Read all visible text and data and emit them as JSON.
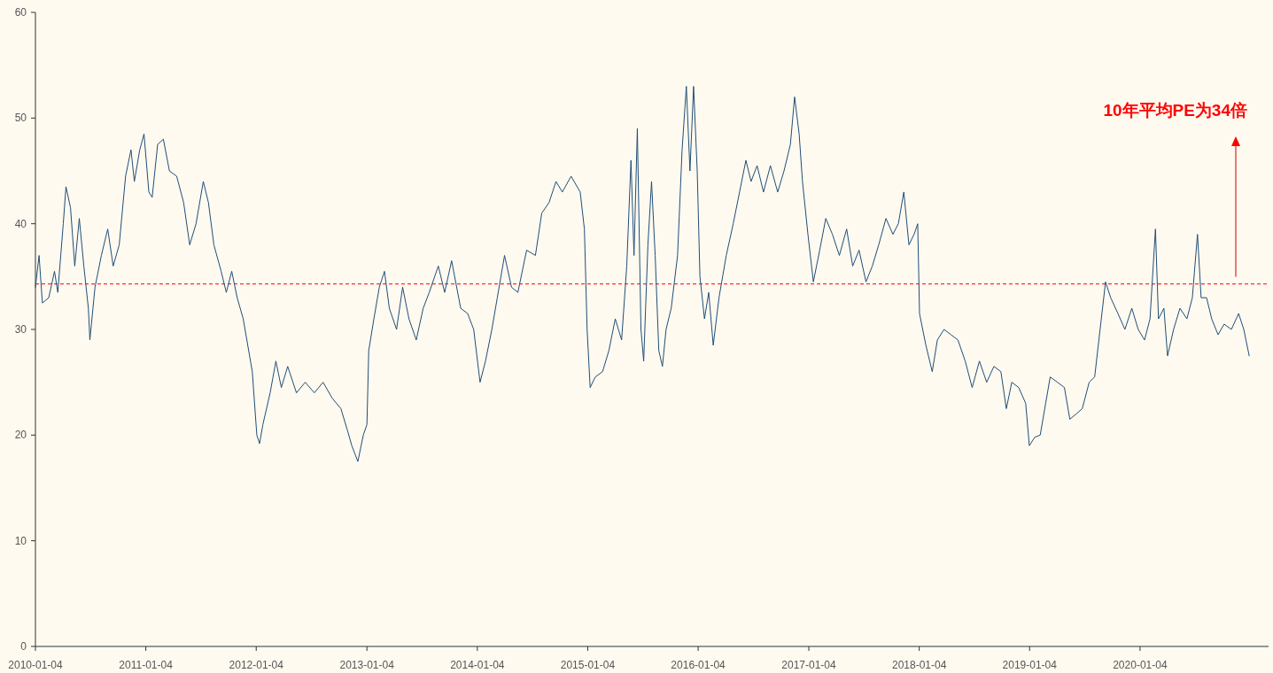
{
  "chart_data": {
    "type": "line",
    "x": [
      "2010-01-04",
      "2010-01-16",
      "2010-01-27",
      "2010-02-17",
      "2010-03-08",
      "2010-03-19",
      "2010-04-06",
      "2010-04-15",
      "2010-04-30",
      "2010-05-14",
      "2010-05-29",
      "2010-06-13",
      "2010-06-28",
      "2010-07-03",
      "2010-07-20",
      "2010-08-10",
      "2010-08-31",
      "2010-09-18",
      "2010-10-08",
      "2010-10-29",
      "2010-11-16",
      "2010-11-27",
      "2010-12-15",
      "2010-12-29",
      "2011-01-14",
      "2011-01-25",
      "2011-02-12",
      "2011-03-03",
      "2011-03-23",
      "2011-04-16",
      "2011-05-09",
      "2011-05-29",
      "2011-06-19",
      "2011-07-13",
      "2011-07-30",
      "2011-08-17",
      "2011-09-10",
      "2011-09-27",
      "2011-10-15",
      "2011-11-02",
      "2011-11-22",
      "2011-12-22",
      "2012-01-06",
      "2012-01-15",
      "2012-01-26",
      "2012-02-19",
      "2012-03-09",
      "2012-03-27",
      "2012-04-17",
      "2012-05-16",
      "2012-06-14",
      "2012-07-14",
      "2012-08-12",
      "2012-09-11",
      "2012-10-10",
      "2012-10-31",
      "2012-11-15",
      "2012-12-05",
      "2012-12-23",
      "2013-01-04",
      "2013-01-10",
      "2013-01-27",
      "2013-02-14",
      "2013-03-03",
      "2013-03-19",
      "2013-04-12",
      "2013-05-02",
      "2013-05-23",
      "2013-06-16",
      "2013-07-09",
      "2013-07-29",
      "2013-08-28",
      "2013-09-18",
      "2013-10-11",
      "2013-11-10",
      "2013-12-03",
      "2013-12-23",
      "2014-01-13",
      "2014-01-31",
      "2014-02-21",
      "2014-03-11",
      "2014-04-04",
      "2014-04-27",
      "2014-05-18",
      "2014-06-16",
      "2014-07-15",
      "2014-08-05",
      "2014-08-29",
      "2014-09-21",
      "2014-10-12",
      "2014-11-10",
      "2014-12-10",
      "2014-12-24",
      "2015-01-02",
      "2015-01-12",
      "2015-01-29",
      "2015-02-22",
      "2015-03-15",
      "2015-04-05",
      "2015-04-26",
      "2015-05-13",
      "2015-05-27",
      "2015-06-06",
      "2015-06-17",
      "2015-06-29",
      "2015-07-08",
      "2015-07-22",
      "2015-08-03",
      "2015-08-15",
      "2015-08-27",
      "2015-09-08",
      "2015-09-20",
      "2015-10-07",
      "2015-10-28",
      "2015-11-12",
      "2015-11-26",
      "2015-12-08",
      "2015-12-20",
      "2016-01-01",
      "2016-01-10",
      "2016-01-25",
      "2016-02-08",
      "2016-02-23",
      "2016-03-13",
      "2016-04-06",
      "2016-04-29",
      "2016-05-20",
      "2016-06-10",
      "2016-06-27",
      "2016-07-17",
      "2016-08-07",
      "2016-08-30",
      "2016-09-23",
      "2016-10-14",
      "2016-11-04",
      "2016-11-18",
      "2016-12-03",
      "2016-12-14",
      "2017-01-01",
      "2017-01-19",
      "2017-02-09",
      "2017-03-01",
      "2017-03-23",
      "2017-04-15",
      "2017-05-09",
      "2017-05-29",
      "2017-06-19",
      "2017-07-12",
      "2017-08-02",
      "2017-08-23",
      "2017-09-16",
      "2017-10-09",
      "2017-10-27",
      "2017-11-14",
      "2017-12-01",
      "2017-12-18",
      "2017-12-30",
      "2018-01-05",
      "2018-01-26",
      "2018-02-16",
      "2018-03-05",
      "2018-03-27",
      "2018-04-19",
      "2018-05-12",
      "2018-06-05",
      "2018-06-28",
      "2018-07-22",
      "2018-08-15",
      "2018-09-08",
      "2018-10-01",
      "2018-10-19",
      "2018-11-06",
      "2018-11-29",
      "2018-12-22",
      "2019-01-03",
      "2019-01-21",
      "2019-02-08",
      "2019-02-26",
      "2019-03-13",
      "2019-04-06",
      "2019-04-29",
      "2019-05-17",
      "2019-06-07",
      "2019-06-27",
      "2019-07-20",
      "2019-08-07",
      "2019-08-25",
      "2019-09-12",
      "2019-09-29",
      "2019-10-23",
      "2019-11-15",
      "2019-12-08",
      "2019-12-29",
      "2020-01-19",
      "2020-02-06",
      "2020-02-24",
      "2020-03-05",
      "2020-03-23",
      "2020-04-04",
      "2020-04-24",
      "2020-05-15",
      "2020-06-07",
      "2020-06-25",
      "2020-07-12",
      "2020-07-24",
      "2020-08-11",
      "2020-08-28",
      "2020-09-18",
      "2020-10-08",
      "2020-11-01",
      "2020-11-25",
      "2020-12-12",
      "2020-12-30"
    ],
    "series": [
      {
        "color": "#1f4e79",
        "values": [
          34,
          37,
          32.5,
          33,
          35.5,
          33.5,
          40,
          43.5,
          41.5,
          36,
          40.5,
          36,
          32,
          29,
          34,
          37,
          39.5,
          36,
          38,
          44.5,
          47,
          44,
          47,
          48.5,
          43,
          42.5,
          47.5,
          48,
          45,
          44.5,
          42,
          38,
          40,
          44,
          42,
          38,
          35.5,
          33.5,
          35.5,
          33,
          31,
          26,
          20,
          19.2,
          21,
          24,
          27,
          24.5,
          26.5,
          24,
          25,
          24,
          25,
          23.5,
          22.5,
          20.5,
          19,
          17.5,
          20,
          21,
          28,
          31,
          34,
          35.5,
          32,
          30,
          34,
          31,
          29,
          32,
          33.5,
          36,
          33.5,
          36.5,
          32,
          31.5,
          30,
          25,
          27,
          30,
          33,
          37,
          34,
          33.5,
          37.5,
          37,
          41,
          42,
          44,
          43,
          44.5,
          43,
          39.5,
          30,
          24.5,
          25.5,
          26,
          28,
          31,
          29,
          36,
          46,
          37,
          49,
          30,
          27,
          38,
          44,
          37,
          28,
          26.5,
          30,
          32,
          37,
          47,
          53,
          45,
          53,
          45,
          35,
          31,
          33.5,
          28.5,
          33,
          37,
          40,
          43,
          46,
          44,
          45.5,
          43,
          45.5,
          43,
          45,
          47.5,
          52,
          48.5,
          44,
          39,
          34.5,
          37.5,
          40.5,
          39,
          37,
          39.5,
          36,
          37.5,
          34.5,
          36,
          38,
          40.5,
          39,
          40,
          43,
          38,
          39,
          40,
          31.5,
          28.5,
          26,
          29,
          30,
          29.5,
          29,
          27,
          24.5,
          27,
          25,
          26.5,
          26,
          22.5,
          25,
          24.5,
          23,
          19,
          19.8,
          20,
          23,
          25.5,
          25,
          24.5,
          21.5,
          22,
          22.5,
          25,
          25.5,
          30,
          34.5,
          33,
          31.5,
          30,
          32,
          30,
          29,
          31,
          39.5,
          31,
          32,
          27.5,
          30,
          32,
          31,
          33,
          39,
          33,
          33,
          31,
          29.5,
          30.5,
          30,
          31.5,
          30,
          27.5
        ]
      }
    ],
    "xlim": [
      "2010-01-04",
      "2021-03-04"
    ],
    "ylim": [
      0,
      60
    ],
    "xticks": [
      {
        "value": "2010-01-04",
        "label": "2010-01-04"
      },
      {
        "value": "2011-01-04",
        "label": "2011-01-04"
      },
      {
        "value": "2012-01-04",
        "label": "2012-01-04"
      },
      {
        "value": "2013-01-04",
        "label": "2013-01-04"
      },
      {
        "value": "2014-01-04",
        "label": "2014-01-04"
      },
      {
        "value": "2015-01-04",
        "label": "2015-01-04"
      },
      {
        "value": "2016-01-04",
        "label": "2016-01-04"
      },
      {
        "value": "2017-01-04",
        "label": "2017-01-04"
      },
      {
        "value": "2018-01-04",
        "label": "2018-01-04"
      },
      {
        "value": "2019-01-04",
        "label": "2019-01-04"
      },
      {
        "value": "2020-01-04",
        "label": "2020-01-04"
      }
    ],
    "yticks": [
      0,
      10,
      20,
      30,
      40,
      50,
      60
    ],
    "ref_lines": [
      {
        "axis": "y",
        "value": 34.3,
        "color": "#ff0000",
        "line_style": "dashed"
      }
    ],
    "annotations": [
      "10年平均PE为34倍"
    ]
  }
}
